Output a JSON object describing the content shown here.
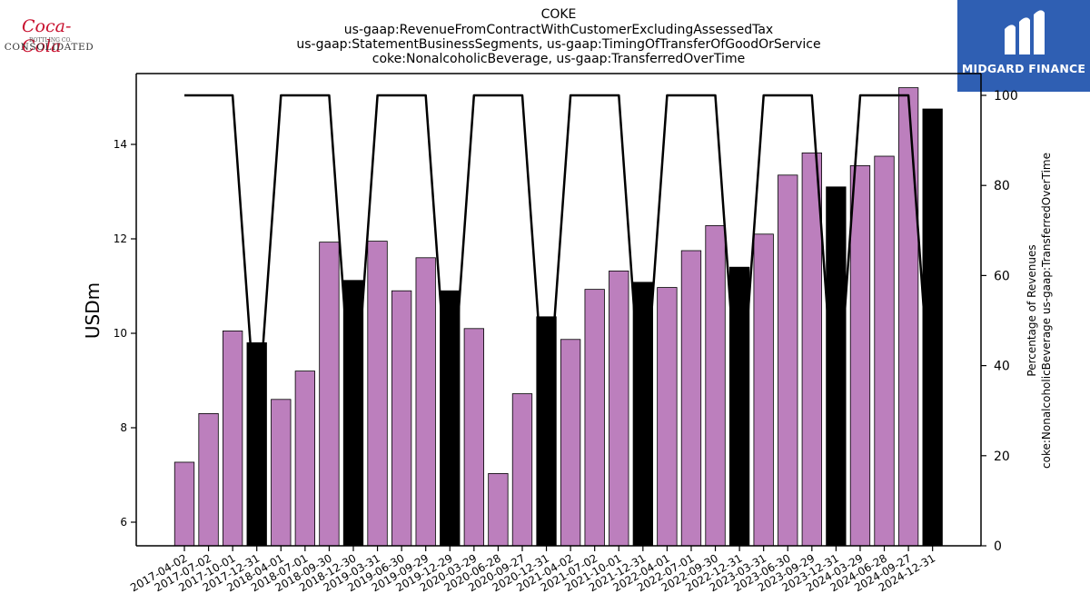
{
  "logos": {
    "left_script": "Coca-Cola",
    "left_sub": "BOTTLING CO.",
    "left_main": "CONSOLIDATED",
    "right_text": "MIDGARD FINANCE"
  },
  "colors": {
    "bar_purple": "#bc7fbd",
    "bar_black": "#000000",
    "line": "#000000",
    "logo_right_bg": "#2f5fb3"
  },
  "chart_data": {
    "type": "bar",
    "title": [
      "COKE",
      "us-gaap:RevenueFromContractWithCustomerExcludingAssessedTax",
      "us-gaap:StatementBusinessSegments, us-gaap:TimingOfTransferOfGoodOrService",
      "coke:NonalcoholicBeverage, us-gaap:TransferredOverTime"
    ],
    "ylabel": "USDm",
    "y2label": "Percentage of Revenues\ncoke:NonalcoholicBeverage us-gaap:TransferredOverTime",
    "ylim": [
      5.5,
      15.5
    ],
    "yticks": [
      6,
      8,
      10,
      12,
      14
    ],
    "y2lim": [
      0,
      100
    ],
    "y2ticks": [
      0,
      20,
      40,
      60,
      80,
      100
    ],
    "categories": [
      "2017-04-02",
      "2017-07-02",
      "2017-10-01",
      "2017-12-31",
      "2018-04-01",
      "2018-07-01",
      "2018-09-30",
      "2018-12-30",
      "2019-03-31",
      "2019-06-30",
      "2019-09-29",
      "2019-12-29",
      "2020-03-29",
      "2020-06-28",
      "2020-09-27",
      "2020-12-31",
      "2021-04-02",
      "2021-07-02",
      "2021-10-01",
      "2021-12-31",
      "2022-04-01",
      "2022-07-01",
      "2022-09-30",
      "2022-12-31",
      "2023-03-31",
      "2023-06-30",
      "2023-09-29",
      "2023-12-31",
      "2024-03-29",
      "2024-06-28",
      "2024-09-27",
      "2024-12-31"
    ],
    "values": [
      7.27,
      8.3,
      10.05,
      9.8,
      8.6,
      9.2,
      11.93,
      11.12,
      11.95,
      10.9,
      11.6,
      10.9,
      10.1,
      7.03,
      8.72,
      10.35,
      9.87,
      10.93,
      11.32,
      11.08,
      10.97,
      11.75,
      12.28,
      11.4,
      12.1,
      13.35,
      13.82,
      13.1,
      13.55,
      13.75,
      15.2,
      14.75
    ],
    "quarter_type": [
      "Q",
      "Q",
      "Q",
      "A",
      "Q",
      "Q",
      "Q",
      "A",
      "Q",
      "Q",
      "Q",
      "A",
      "Q",
      "Q",
      "Q",
      "A",
      "Q",
      "Q",
      "Q",
      "A",
      "Q",
      "Q",
      "Q",
      "A",
      "Q",
      "Q",
      "Q",
      "A",
      "Q",
      "Q",
      "Q",
      "A"
    ],
    "percentage": [
      100,
      100,
      100,
      25,
      100,
      100,
      100,
      25,
      100,
      100,
      100,
      25,
      100,
      100,
      100,
      25,
      100,
      100,
      100,
      25,
      100,
      100,
      100,
      25,
      100,
      100,
      100,
      25,
      100,
      100,
      100,
      25
    ]
  }
}
